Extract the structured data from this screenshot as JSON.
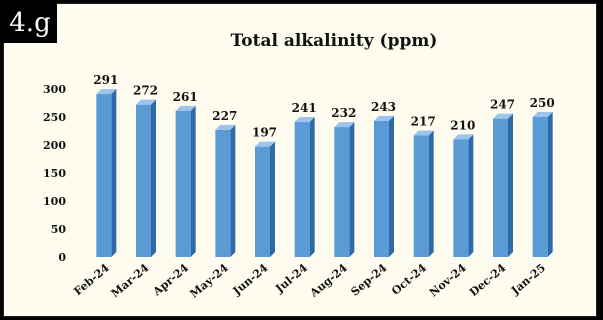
{
  "figure_label": "4.g",
  "chart_data": {
    "type": "bar",
    "title": "Total alkalinity (ppm)",
    "xlabel": "",
    "ylabel": "",
    "categories": [
      "Feb-24",
      "Mar-24",
      "Apr-24",
      "May-24",
      "Jun-24",
      "Jul-24",
      "Aug-24",
      "Sep-24",
      "Oct-24",
      "Nov-24",
      "Dec-24",
      "Jan-25"
    ],
    "values": [
      291,
      272,
      261,
      227,
      197,
      241,
      232,
      243,
      217,
      210,
      247,
      250
    ],
    "yticks": [
      0,
      50,
      100,
      150,
      200,
      250,
      300
    ],
    "ylim": [
      0,
      300
    ],
    "data_labels": true,
    "grid": false,
    "legend": "none",
    "bar_color": "#5b9bd5",
    "bar_side_color": "#2f6aa6",
    "bar_top_color": "#9cc4ec"
  }
}
